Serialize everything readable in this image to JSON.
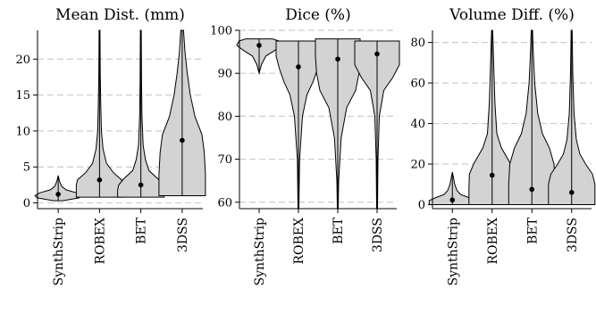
{
  "chart_data": [
    {
      "type": "violin",
      "title": "Mean Dist. (mm)",
      "ylim": [
        -0.8,
        24
      ],
      "yticks": [
        0,
        5,
        10,
        15,
        20
      ],
      "categories": [
        "SynthStrip",
        "ROBEX",
        "BET",
        "3DSS"
      ],
      "grid": "horizontal dashed",
      "series": [
        {
          "category": "SynthStrip",
          "median": 1.2,
          "min": 0.3,
          "max": 3.8,
          "profile": [
            [
              0.3,
              0.2
            ],
            [
              0.7,
              0.9
            ],
            [
              1.0,
              1.0
            ],
            [
              1.4,
              0.8
            ],
            [
              1.8,
              0.35
            ],
            [
              2.3,
              0.15
            ],
            [
              3.0,
              0.06
            ],
            [
              3.8,
              0.0
            ]
          ]
        },
        {
          "category": "ROBEX",
          "median": 3.2,
          "min": 0.8,
          "max": 24,
          "profile": [
            [
              0.8,
              1.0
            ],
            [
              1.5,
              1.0
            ],
            [
              2.5,
              1.0
            ],
            [
              3.2,
              0.95
            ],
            [
              4.2,
              0.6
            ],
            [
              5.5,
              0.3
            ],
            [
              7.5,
              0.15
            ],
            [
              10,
              0.08
            ],
            [
              14,
              0.05
            ],
            [
              18,
              0.03
            ],
            [
              24,
              0.02
            ]
          ]
        },
        {
          "category": "BET",
          "median": 2.5,
          "min": 0.8,
          "max": 24,
          "profile": [
            [
              0.8,
              1.0
            ],
            [
              1.8,
              1.0
            ],
            [
              2.5,
              0.95
            ],
            [
              3.3,
              0.75
            ],
            [
              4.5,
              0.35
            ],
            [
              6.0,
              0.2
            ],
            [
              8,
              0.1
            ],
            [
              12,
              0.05
            ],
            [
              17,
              0.03
            ],
            [
              24,
              0.02
            ]
          ]
        },
        {
          "category": "3DSS",
          "median": 8.7,
          "min": 1.0,
          "max": 24,
          "profile": [
            [
              1.0,
              1.0
            ],
            [
              4,
              1.0
            ],
            [
              7,
              0.95
            ],
            [
              9.5,
              0.85
            ],
            [
              12,
              0.55
            ],
            [
              15,
              0.35
            ],
            [
              18,
              0.22
            ],
            [
              21,
              0.12
            ],
            [
              24,
              0.06
            ]
          ]
        }
      ]
    },
    {
      "type": "violin",
      "title": "Dice (%)",
      "ylim": [
        58.5,
        100
      ],
      "yticks": [
        60,
        70,
        80,
        90,
        100
      ],
      "categories": [
        "SynthStrip",
        "ROBEX",
        "BET",
        "3DSS"
      ],
      "grid": "horizontal dashed",
      "series": [
        {
          "category": "SynthStrip",
          "median": 96.5,
          "min": 90,
          "max": 98,
          "profile": [
            [
              90,
              0.0
            ],
            [
              92,
              0.1
            ],
            [
              94,
              0.3
            ],
            [
              95.5,
              0.75
            ],
            [
              96.5,
              1.0
            ],
            [
              97.5,
              0.9
            ],
            [
              98,
              0.6
            ]
          ]
        },
        {
          "category": "ROBEX",
          "median": 91.5,
          "min": 58.5,
          "max": 97.5,
          "profile": [
            [
              58.5,
              0.02
            ],
            [
              70,
              0.05
            ],
            [
              80,
              0.18
            ],
            [
              85,
              0.38
            ],
            [
              88,
              0.65
            ],
            [
              91,
              0.85
            ],
            [
              94,
              1.0
            ],
            [
              96,
              1.0
            ],
            [
              97.5,
              1.0
            ]
          ]
        },
        {
          "category": "BET",
          "median": 93.3,
          "min": 58.5,
          "max": 98,
          "profile": [
            [
              58.5,
              0.02
            ],
            [
              65,
              0.04
            ],
            [
              75,
              0.15
            ],
            [
              82,
              0.4
            ],
            [
              86,
              0.8
            ],
            [
              90,
              0.95
            ],
            [
              94,
              1.0
            ],
            [
              98,
              1.0
            ]
          ]
        },
        {
          "category": "3DSS",
          "median": 94.5,
          "min": 58.5,
          "max": 97.5,
          "profile": [
            [
              58.5,
              0.02
            ],
            [
              70,
              0.04
            ],
            [
              80,
              0.1
            ],
            [
              86,
              0.3
            ],
            [
              89,
              0.7
            ],
            [
              92,
              1.0
            ],
            [
              95,
              1.0
            ],
            [
              97.5,
              1.0
            ]
          ]
        }
      ]
    },
    {
      "type": "violin",
      "title": "Volume Diff. (%)",
      "ylim": [
        -2,
        86
      ],
      "yticks": [
        0,
        20,
        40,
        60,
        80
      ],
      "categories": [
        "SynthStrip",
        "ROBEX",
        "BET",
        "3DSS"
      ],
      "grid": "horizontal dashed",
      "series": [
        {
          "category": "SynthStrip",
          "median": 2.3,
          "min": 0,
          "max": 16,
          "profile": [
            [
              0,
              1.0
            ],
            [
              2,
              1.0
            ],
            [
              3.5,
              0.7
            ],
            [
              5,
              0.35
            ],
            [
              7,
              0.2
            ],
            [
              10,
              0.1
            ],
            [
              13,
              0.05
            ],
            [
              16,
              0.0
            ]
          ]
        },
        {
          "category": "ROBEX",
          "median": 14.5,
          "min": 0,
          "max": 86,
          "profile": [
            [
              0,
              1.0
            ],
            [
              8,
              1.0
            ],
            [
              15,
              0.98
            ],
            [
              20,
              0.8
            ],
            [
              28,
              0.4
            ],
            [
              35,
              0.2
            ],
            [
              50,
              0.12
            ],
            [
              65,
              0.08
            ],
            [
              80,
              0.04
            ],
            [
              86,
              0.02
            ]
          ]
        },
        {
          "category": "BET",
          "median": 7.5,
          "min": 0,
          "max": 86,
          "profile": [
            [
              0,
              1.0
            ],
            [
              10,
              1.0
            ],
            [
              20,
              0.95
            ],
            [
              28,
              0.75
            ],
            [
              35,
              0.45
            ],
            [
              45,
              0.25
            ],
            [
              60,
              0.12
            ],
            [
              75,
              0.06
            ],
            [
              86,
              0.03
            ]
          ]
        },
        {
          "category": "3DSS",
          "median": 6.0,
          "min": 0,
          "max": 86,
          "profile": [
            [
              0,
              1.0
            ],
            [
              10,
              1.0
            ],
            [
              15,
              0.9
            ],
            [
              20,
              0.6
            ],
            [
              25,
              0.35
            ],
            [
              32,
              0.2
            ],
            [
              45,
              0.1
            ],
            [
              65,
              0.05
            ],
            [
              86,
              0.02
            ]
          ]
        }
      ]
    }
  ],
  "colors": {
    "violin_fill": "#d3d3d3",
    "violin_edge": "#000000",
    "median_dot": "#000000",
    "grid": "#cccccc",
    "axis": "#000000"
  }
}
